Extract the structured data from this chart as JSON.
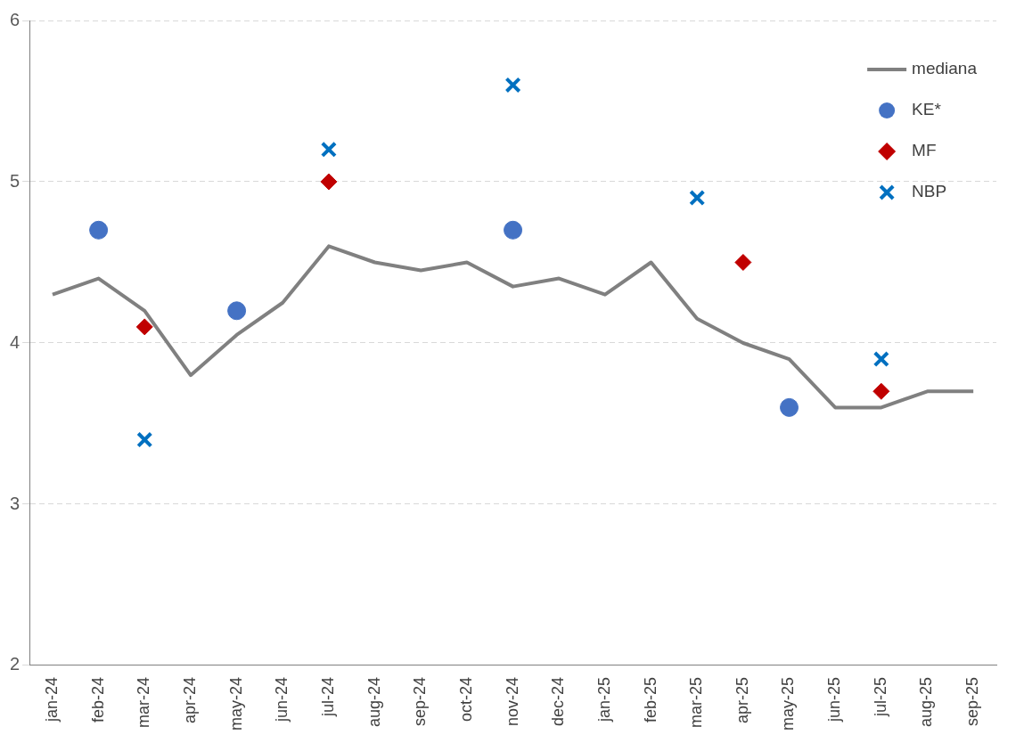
{
  "chart_data": {
    "type": "line",
    "categories": [
      "jan-24",
      "feb-24",
      "mar-24",
      "apr-24",
      "may-24",
      "jun-24",
      "jul-24",
      "aug-24",
      "sep-24",
      "oct-24",
      "nov-24",
      "dec-24",
      "jan-25",
      "feb-25",
      "mar-25",
      "apr-25",
      "may-25",
      "jun-25",
      "jul-25",
      "aug-25",
      "sep-25"
    ],
    "series": [
      {
        "name": "mediana",
        "type": "line",
        "marker": "none",
        "color": "#808080",
        "values": [
          4.3,
          4.4,
          4.2,
          3.8,
          4.05,
          4.25,
          4.6,
          4.5,
          4.45,
          4.5,
          4.35,
          4.4,
          4.3,
          4.5,
          4.15,
          4.0,
          3.9,
          3.6,
          3.6,
          3.7,
          3.7
        ]
      },
      {
        "name": "KE*",
        "type": "scatter",
        "marker": "circle",
        "color": "#4472c4",
        "values": [
          null,
          4.7,
          null,
          null,
          4.2,
          null,
          null,
          null,
          null,
          null,
          4.7,
          null,
          null,
          null,
          null,
          null,
          3.6,
          null,
          null,
          null,
          null
        ]
      },
      {
        "name": "MF",
        "type": "scatter",
        "marker": "diamond",
        "color": "#c00000",
        "values": [
          null,
          null,
          4.1,
          null,
          null,
          null,
          5.0,
          null,
          null,
          null,
          null,
          null,
          null,
          null,
          null,
          4.5,
          null,
          null,
          3.7,
          null,
          null
        ]
      },
      {
        "name": "NBP",
        "type": "scatter",
        "marker": "cross",
        "color": "#0070c0",
        "values": [
          null,
          null,
          3.4,
          null,
          null,
          null,
          5.2,
          null,
          null,
          null,
          5.6,
          null,
          null,
          null,
          4.9,
          null,
          null,
          null,
          3.9,
          null,
          null
        ]
      }
    ],
    "ylim": [
      2,
      6
    ],
    "yticks": [
      2,
      3,
      4,
      5,
      6
    ],
    "grid": "y",
    "legend": "top right"
  }
}
